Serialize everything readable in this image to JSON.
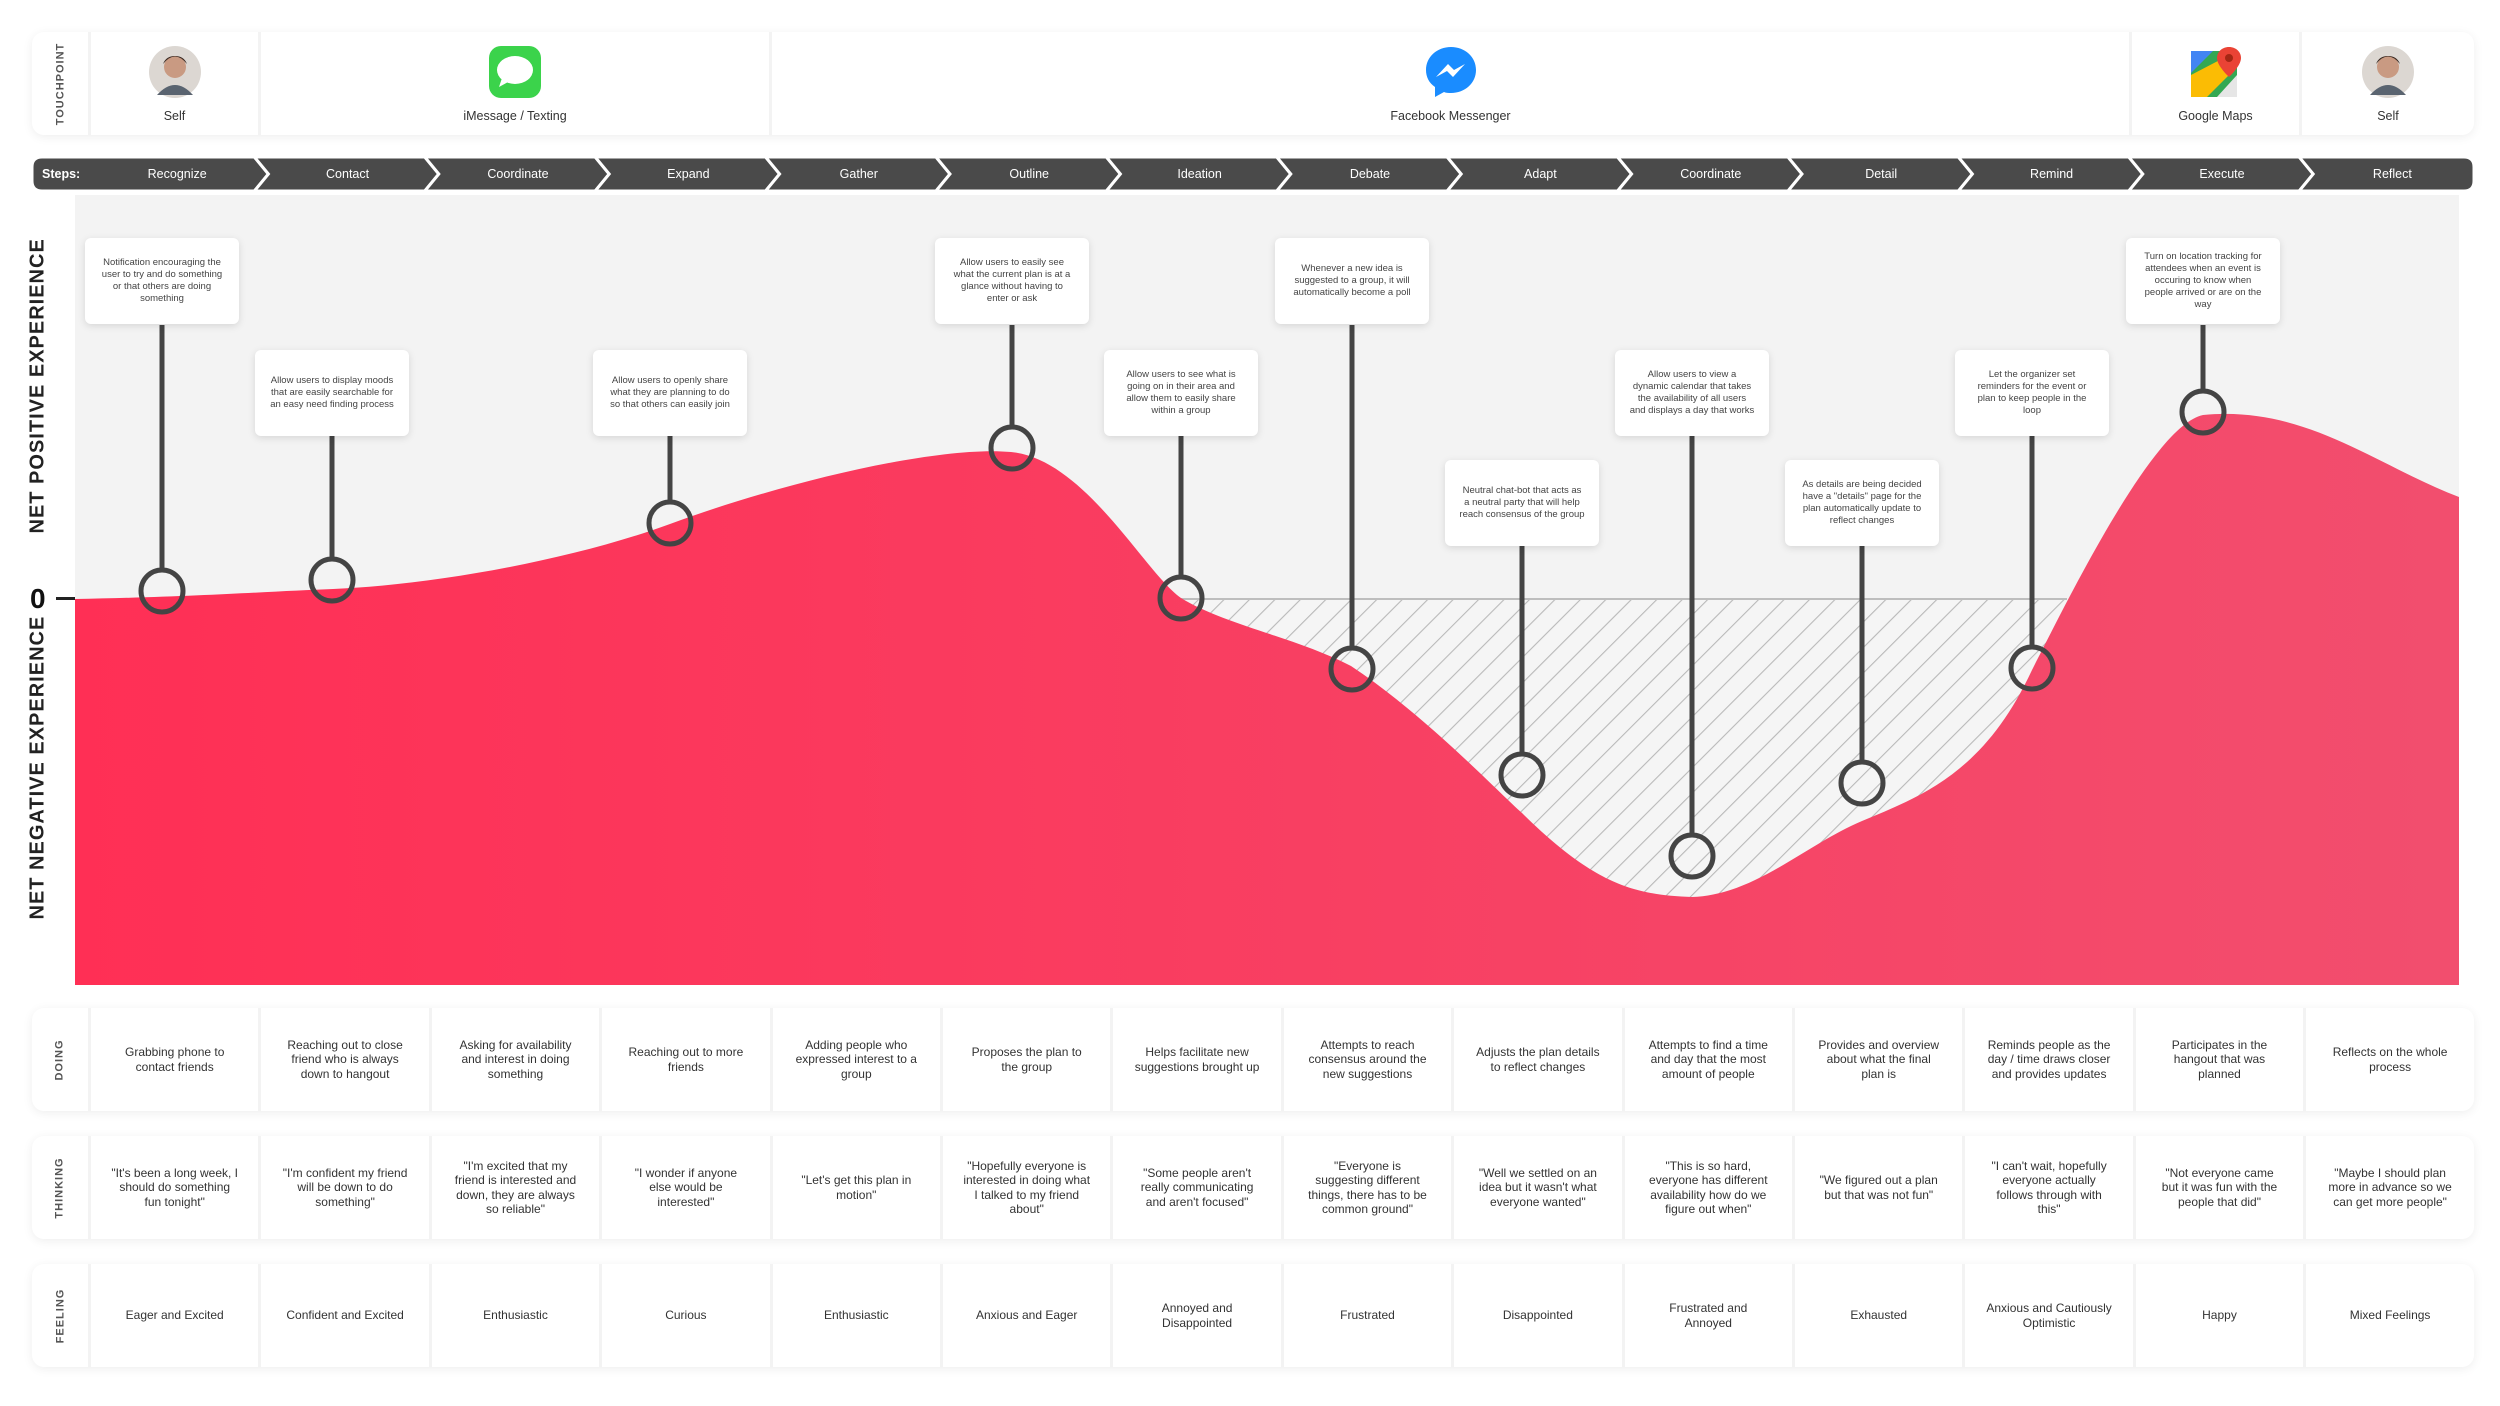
{
  "touchpoint": {
    "row_label": "TOUCHPOINT",
    "items": [
      {
        "label": "Self",
        "icon": "avatar-icon"
      },
      {
        "label": "iMessage / Texting",
        "icon": "imessage-icon"
      },
      {
        "label": "Facebook Messenger",
        "icon": "messenger-icon"
      },
      {
        "label": "Google Maps",
        "icon": "google-maps-icon"
      },
      {
        "label": "Self",
        "icon": "avatar-icon"
      }
    ]
  },
  "steps": {
    "title": "Steps:",
    "items": [
      "Recognize",
      "Contact",
      "Coordinate",
      "Expand",
      "Gather",
      "Outline",
      "Ideation",
      "Debate",
      "Adapt",
      "Coordinate",
      "Detail",
      "Remind",
      "Execute",
      "Reflect"
    ]
  },
  "graph": {
    "positive_label": "NET POSITIVE EXPERIENCE",
    "negative_label": "NET NEGATIVE EXPERIENCE",
    "zero_label": "0",
    "notes": [
      "Notification encouraging the user to try and do something or that others are doing something",
      "Allow users to display moods that are easily searchable for an easy need finding process",
      "Allow users to openly share what they are planning to do so that others can easily join",
      "",
      "",
      "Allow users to easily see what the current plan is at a glance without having to enter or ask",
      "Allow users to see what is going on in their area and allow them to easily share within a group",
      "Whenever a new idea is suggested to a group, it will automatically become a poll",
      "Neutral chat-bot that acts as a neutral party that will help reach consensus of the group",
      "Allow users to view a dynamic calendar that takes the availability of all users and displays a day that works",
      "As details are being decided have a \"details\" page for the plan automatically update to reflect changes",
      "Let the organizer set reminders for the event or plan to keep people in the loop",
      "Turn on location tracking for attendees when an event is occuring to know when people arrived or are on the way"
    ],
    "colors": {
      "curve": "#ff2f55",
      "curve_end": "#f24e6e",
      "pin": "#444444",
      "hatch": "#b9b9b9"
    }
  },
  "doing": {
    "row_label": "DOING",
    "items": [
      "Grabbing phone to contact friends",
      "Reaching out to close friend who is always down to hangout",
      "Asking for availability and interest in doing something",
      "Reaching out to more friends",
      "Adding people who expressed interest to a group",
      "Proposes the plan to the group",
      "Helps facilitate new suggestions brought up",
      "Attempts to reach consensus around the new suggestions",
      "Adjusts the plan details to reflect changes",
      "Attempts to find a time and day that the most amount of people",
      "Provides and overview about what the final plan is",
      "Reminds people as the day / time draws closer and provides updates",
      "Participates in the hangout that was planned",
      "Reflects on the whole process"
    ]
  },
  "thinking": {
    "row_label": "THINKING",
    "items": [
      "\"It's been a long week, I should do something fun tonight\"",
      "\"I'm confident my friend will be down to do something\"",
      "\"I'm excited that my friend is interested and down, they are always so reliable\"",
      "\"I wonder if anyone else would be interested\"",
      "\"Let's get this plan in motion\"",
      "\"Hopefully everyone is interested in doing what I talked to my friend about\"",
      "\"Some people aren't really communicating and aren't focused\"",
      "\"Everyone is suggesting different things, there has to be common ground\"",
      "\"Well we settled on an idea but it wasn't what everyone wanted\"",
      "\"This is so hard, everyone has different availability how do we figure out when\"",
      "\"We figured out a plan but that was not fun\"",
      "\"I can't wait, hopefully everyone actually follows through with this\"",
      "\"Not everyone came but it was fun with the people that did\"",
      "\"Maybe I should plan more in advance so we can get more people\""
    ]
  },
  "feeling": {
    "row_label": "FEELING",
    "items": [
      "Eager and Excited",
      "Confident and Excited",
      "Enthusiastic",
      "Curious",
      "Enthusiastic",
      "Anxious and Eager",
      "Annoyed and Disappointed",
      "Frustrated",
      "Disappointed",
      "Frustrated and Annoyed",
      "Exhausted",
      "Anxious and Cautiously Optimistic",
      "Happy",
      "Mixed Feelings"
    ]
  }
}
